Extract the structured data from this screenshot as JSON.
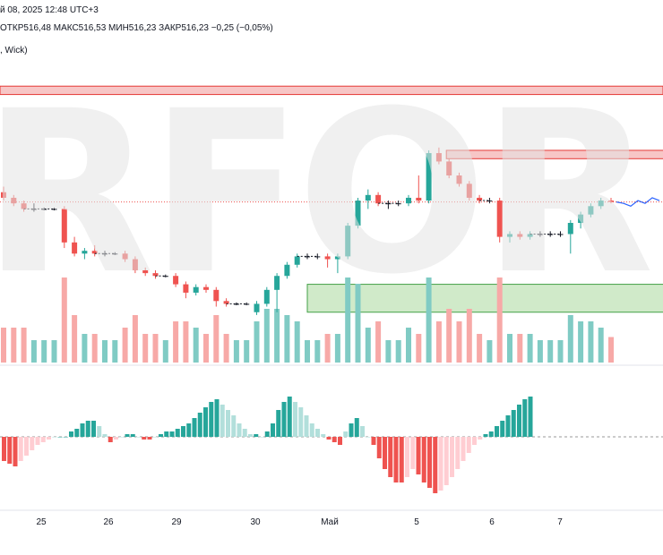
{
  "header": {
    "date_line": "й 08, 2025 12:48 UTC+3",
    "ohlc_line": "ОТКР516,48  МАКС516,53  МИН516,23  ЗАКР516,23  −0,25 (−0,05%)",
    "indicator_line": ", Wick)"
  },
  "watermark": {
    "text": "RFOREX.com",
    "color": "#e3e3e3"
  },
  "x_axis": {
    "labels": [
      "25",
      "26",
      "29",
      "30",
      "Май",
      "5",
      "6",
      "7"
    ]
  },
  "colors": {
    "up": "#26a69a",
    "down": "#ef5350",
    "up_volume": "#80cbc4",
    "down_volume": "#f7a9a7",
    "resistance_zone": "#f7c6c6",
    "support_zone": "#c8e6c0",
    "forecast_line": "#2962ff"
  },
  "chart_data": {
    "type": "candlestick",
    "session_labels": [
      "25",
      "26",
      "29",
      "30",
      "Май",
      "5",
      "6",
      "7"
    ],
    "candles": [
      {
        "o": 60,
        "h": 62,
        "l": 57,
        "c": 58
      },
      {
        "o": 58,
        "h": 59,
        "l": 55,
        "c": 56
      },
      {
        "o": 56,
        "h": 57,
        "l": 53,
        "c": 54
      },
      {
        "o": 54,
        "h": 56,
        "l": 53,
        "c": 54
      },
      {
        "o": 54,
        "h": 54.5,
        "l": 53.5,
        "c": 54
      },
      {
        "o": 54,
        "h": 54.5,
        "l": 53.5,
        "c": 54
      },
      {
        "o": 54,
        "h": 55,
        "l": 40,
        "c": 42
      },
      {
        "o": 42,
        "h": 44,
        "l": 37,
        "c": 38
      },
      {
        "o": 38,
        "h": 40,
        "l": 36,
        "c": 39
      },
      {
        "o": 39,
        "h": 41,
        "l": 37,
        "c": 38
      },
      {
        "o": 38,
        "h": 39,
        "l": 37,
        "c": 38
      },
      {
        "o": 38,
        "h": 38.5,
        "l": 37.5,
        "c": 38
      },
      {
        "o": 38,
        "h": 39,
        "l": 35,
        "c": 36
      },
      {
        "o": 36,
        "h": 37,
        "l": 31,
        "c": 32
      },
      {
        "o": 32,
        "h": 33,
        "l": 30,
        "c": 31
      },
      {
        "o": 31,
        "h": 32,
        "l": 29,
        "c": 30
      },
      {
        "o": 30,
        "h": 30.5,
        "l": 29.5,
        "c": 30
      },
      {
        "o": 30,
        "h": 31,
        "l": 26,
        "c": 27
      },
      {
        "o": 27,
        "h": 28,
        "l": 22,
        "c": 24
      },
      {
        "o": 24,
        "h": 27,
        "l": 23,
        "c": 26
      },
      {
        "o": 26,
        "h": 27,
        "l": 24,
        "c": 25
      },
      {
        "o": 25,
        "h": 26,
        "l": 19,
        "c": 21
      },
      {
        "o": 21,
        "h": 22,
        "l": 19,
        "c": 20
      },
      {
        "o": 20,
        "h": 20.5,
        "l": 19.5,
        "c": 20
      },
      {
        "o": 20,
        "h": 20.5,
        "l": 19.5,
        "c": 20
      },
      {
        "o": 17,
        "h": 21,
        "l": 16,
        "c": 20
      },
      {
        "o": 20,
        "h": 26,
        "l": 19,
        "c": 25
      },
      {
        "o": 25,
        "h": 31,
        "l": 17,
        "c": 30
      },
      {
        "o": 30,
        "h": 35,
        "l": 29,
        "c": 34
      },
      {
        "o": 34,
        "h": 38,
        "l": 33,
        "c": 37
      },
      {
        "o": 37,
        "h": 38,
        "l": 36,
        "c": 37
      },
      {
        "o": 37,
        "h": 38,
        "l": 36,
        "c": 37
      },
      {
        "o": 37,
        "h": 38,
        "l": 33,
        "c": 36
      },
      {
        "o": 36,
        "h": 38,
        "l": 31,
        "c": 37
      },
      {
        "o": 37,
        "h": 49,
        "l": 36,
        "c": 48
      },
      {
        "o": 48,
        "h": 58,
        "l": 47,
        "c": 57
      },
      {
        "o": 57,
        "h": 61,
        "l": 54,
        "c": 59
      },
      {
        "o": 59,
        "h": 60,
        "l": 55,
        "c": 56
      },
      {
        "o": 56,
        "h": 57,
        "l": 54,
        "c": 56
      },
      {
        "o": 56,
        "h": 57,
        "l": 55,
        "c": 56
      },
      {
        "o": 56,
        "h": 59,
        "l": 55,
        "c": 58
      },
      {
        "o": 58,
        "h": 66,
        "l": 56,
        "c": 57
      },
      {
        "o": 57,
        "h": 75,
        "l": 56,
        "c": 74
      },
      {
        "o": 74,
        "h": 76,
        "l": 70,
        "c": 71
      },
      {
        "o": 71,
        "h": 72,
        "l": 65,
        "c": 66
      },
      {
        "o": 66,
        "h": 67,
        "l": 62,
        "c": 63
      },
      {
        "o": 63,
        "h": 64,
        "l": 57,
        "c": 58
      },
      {
        "o": 58,
        "h": 59,
        "l": 56,
        "c": 57
      },
      {
        "o": 57,
        "h": 58,
        "l": 56,
        "c": 57
      },
      {
        "o": 57,
        "h": 58,
        "l": 42,
        "c": 44
      },
      {
        "o": 44,
        "h": 46,
        "l": 42,
        "c": 45
      },
      {
        "o": 45,
        "h": 46,
        "l": 43,
        "c": 44
      },
      {
        "o": 44,
        "h": 46,
        "l": 43,
        "c": 45
      },
      {
        "o": 45,
        "h": 46,
        "l": 44,
        "c": 45
      },
      {
        "o": 45,
        "h": 46,
        "l": 44,
        "c": 45
      },
      {
        "o": 45,
        "h": 46,
        "l": 44,
        "c": 45
      },
      {
        "o": 45,
        "h": 50,
        "l": 38,
        "c": 49
      },
      {
        "o": 49,
        "h": 53,
        "l": 47,
        "c": 52
      },
      {
        "o": 52,
        "h": 56,
        "l": 51,
        "c": 55
      },
      {
        "o": 55,
        "h": 58,
        "l": 54,
        "c": 57
      },
      {
        "o": 57,
        "h": 58,
        "l": 56,
        "c": 56.5
      }
    ],
    "forecast": [
      56.5,
      56,
      55,
      57,
      56,
      58,
      57
    ],
    "resistance_zones": [
      {
        "top": 98,
        "bottom": 95
      },
      {
        "top": 75,
        "bottom": 72
      }
    ],
    "support_zone": {
      "top": 27,
      "bottom": 17
    },
    "histogram": [
      -9,
      -10,
      -11,
      -9,
      -7,
      -5,
      -3,
      -2,
      -1,
      0,
      0,
      0,
      2,
      3,
      5,
      6,
      6,
      4,
      1,
      -2,
      -1,
      0,
      1,
      1,
      0,
      -1,
      -1,
      0,
      1,
      2,
      2,
      3,
      4,
      5,
      7,
      9,
      11,
      13,
      14,
      12,
      10,
      8,
      5,
      3,
      1,
      1,
      0,
      2,
      5,
      10,
      13,
      15,
      13,
      11,
      8,
      5,
      3,
      1,
      -1,
      -2,
      -3,
      2,
      5,
      7,
      4,
      0,
      -3,
      -8,
      -12,
      -15,
      -17,
      -17,
      -15,
      -12,
      -14,
      -17,
      -19,
      -21,
      -20,
      -18,
      -15,
      -12,
      -9,
      -6,
      -3,
      -1,
      1,
      2,
      4,
      6,
      8,
      10,
      12,
      14,
      15
    ]
  }
}
